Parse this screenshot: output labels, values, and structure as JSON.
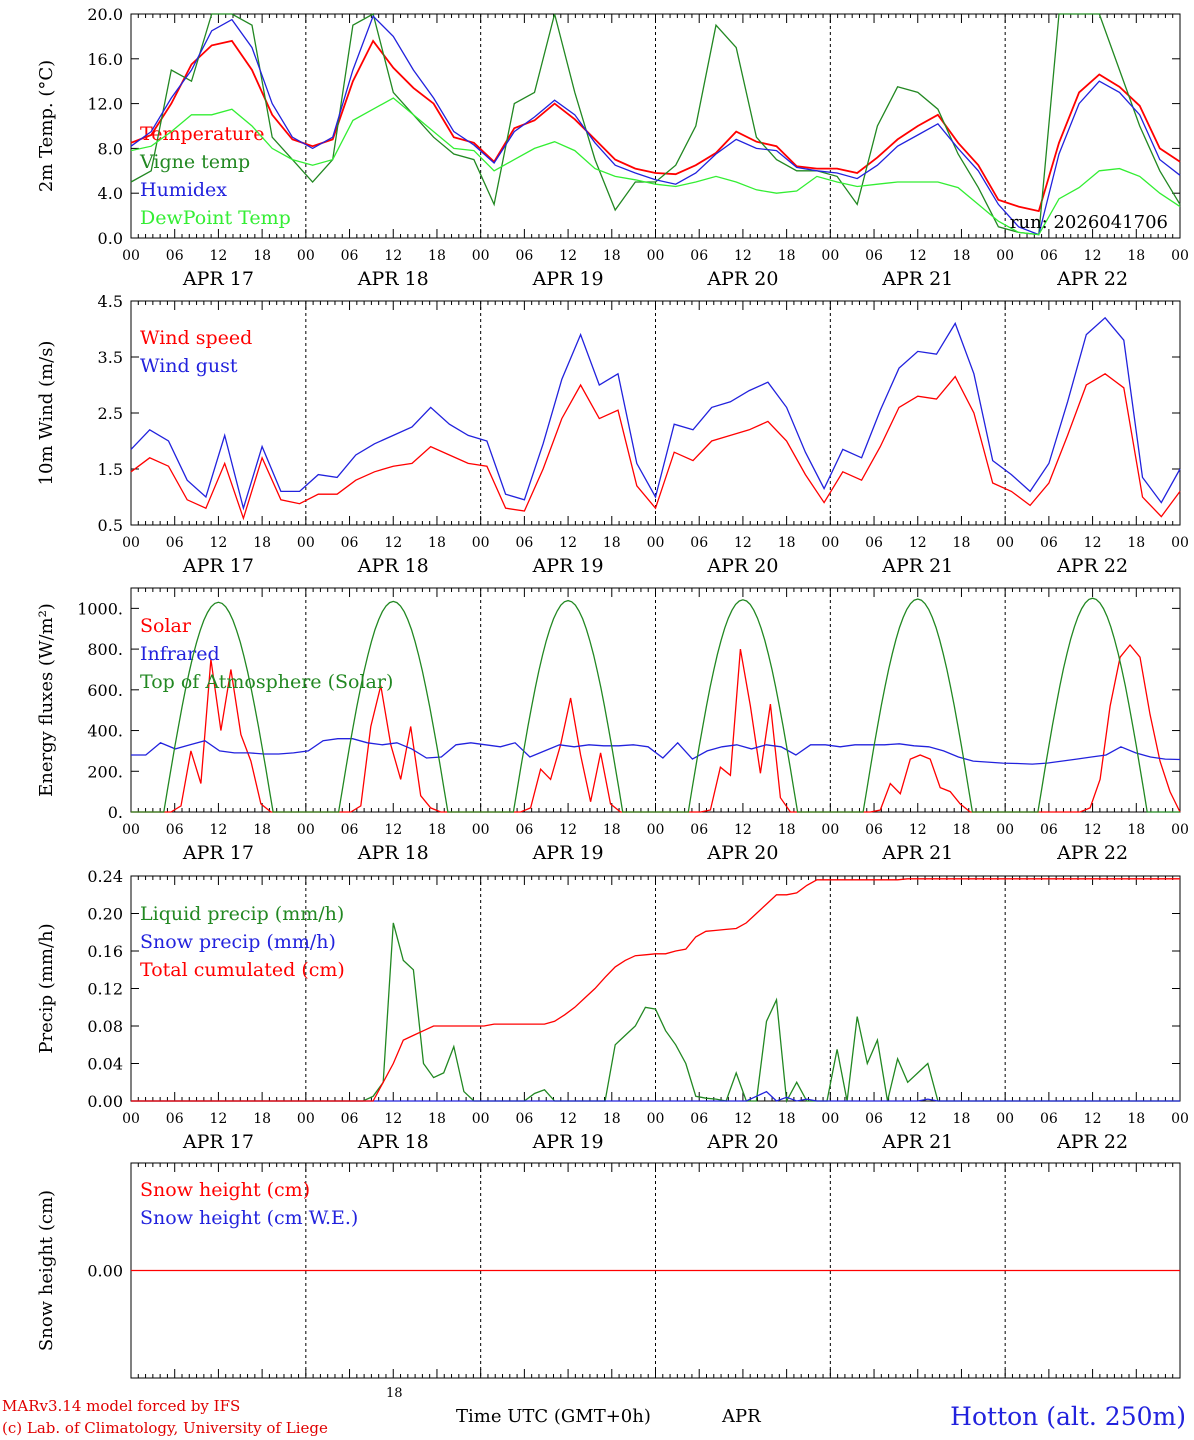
{
  "footer": {
    "model_credit": "MARv3.14 model forced by IFS",
    "lab_credit": "(c) Lab. of Climatology, University of Liege",
    "xaxis_title": "Time UTC (GMT+0h)",
    "xaxis_month": "APR",
    "bottom_hour": "18",
    "station": "Hotton (alt. 250m)"
  },
  "chart_data": [
    {
      "type": "line",
      "id": "temp",
      "ylabel": "2m Temp. (°C)",
      "ylim": [
        0,
        20
      ],
      "yticks": [
        0,
        4,
        8,
        12,
        16,
        20
      ],
      "ytick_labels": [
        "0.0",
        "4.0",
        "8.0",
        "12.0",
        "16.0",
        "20.0"
      ],
      "annotation": "run: 2026041706",
      "x_hours": "hours since APR 17 00 UTC, 3-hour steps from 0 to 144",
      "series": [
        {
          "name": "Temperature",
          "color": "#ff0000",
          "values": [
            8.5,
            9.2,
            12.0,
            15.5,
            17.2,
            17.6,
            15.0,
            11.0,
            8.8,
            8.2,
            8.8,
            14.0,
            17.6,
            15.2,
            13.4,
            12.0,
            9.0,
            8.5,
            6.8,
            9.8,
            10.5,
            12.0,
            10.6,
            8.8,
            7.0,
            6.2,
            5.8,
            5.7,
            6.5,
            7.6,
            9.5,
            8.6,
            8.2,
            6.4,
            6.2,
            6.2,
            5.8,
            7.2,
            8.8,
            10.0,
            11.0,
            8.5,
            6.5,
            3.4,
            2.8,
            2.4,
            8.5,
            13.0,
            14.6,
            13.5,
            11.8,
            8.0,
            6.8
          ]
        },
        {
          "name": "Vigne temp",
          "color": "#228822",
          "values": [
            5.0,
            6.0,
            15.0,
            14.0,
            20.0,
            20.0,
            19.0,
            9.0,
            7.0,
            5.0,
            7.0,
            19.0,
            20.0,
            13.0,
            11.0,
            9.0,
            7.5,
            7.0,
            3.0,
            12.0,
            13.0,
            20.0,
            13.0,
            7.0,
            2.5,
            5.0,
            5.0,
            6.5,
            10.0,
            19.0,
            17.0,
            9.0,
            7.0,
            6.0,
            6.0,
            5.5,
            3.0,
            10.0,
            13.5,
            13.0,
            11.5,
            7.5,
            4.5,
            1.0,
            0.5,
            0.3,
            20.0,
            20.0,
            20.0,
            15.0,
            10.0,
            6.0,
            3.0
          ]
        },
        {
          "name": "Humidex",
          "color": "#2222dd",
          "values": [
            8.2,
            9.5,
            12.5,
            15.0,
            18.5,
            19.5,
            17.0,
            12.0,
            9.0,
            8.0,
            9.0,
            15.0,
            19.8,
            18.0,
            15.0,
            12.5,
            9.5,
            8.3,
            6.7,
            9.5,
            10.8,
            12.3,
            11.0,
            8.5,
            6.5,
            5.8,
            5.2,
            4.8,
            5.8,
            7.5,
            8.8,
            8.0,
            7.8,
            6.3,
            6.0,
            5.8,
            5.3,
            6.5,
            8.2,
            9.2,
            10.2,
            8.0,
            6.0,
            3.0,
            1.0,
            0.3,
            7.5,
            12.0,
            14.0,
            13.0,
            11.0,
            7.0,
            5.6
          ]
        },
        {
          "name": "DewPoint Temp",
          "color": "#33ee33",
          "values": [
            7.8,
            8.2,
            9.5,
            11.0,
            11.0,
            11.5,
            10.0,
            8.0,
            7.0,
            6.5,
            7.0,
            10.5,
            11.5,
            12.5,
            11.0,
            9.5,
            8.0,
            7.8,
            6.0,
            7.0,
            8.0,
            8.6,
            7.8,
            6.2,
            5.5,
            5.2,
            4.8,
            4.6,
            5.0,
            5.5,
            5.0,
            4.3,
            4.0,
            4.2,
            5.5,
            5.0,
            4.6,
            4.8,
            5.0,
            5.0,
            5.0,
            4.5,
            3.0,
            1.5,
            0.5,
            0.3,
            3.5,
            4.5,
            6.0,
            6.2,
            5.5,
            4.0,
            2.8
          ]
        }
      ]
    },
    {
      "type": "line",
      "id": "wind",
      "ylabel": "10m Wind (m/s)",
      "ylim": [
        0.5,
        4.5
      ],
      "yticks": [
        0.5,
        1.5,
        2.5,
        3.5,
        4.5
      ],
      "ytick_labels": [
        "0.5",
        "1.5",
        "2.5",
        "3.5",
        "4.5"
      ],
      "series": [
        {
          "name": "Wind speed",
          "color": "#ff0000",
          "values": [
            1.45,
            1.7,
            1.55,
            0.95,
            0.8,
            1.6,
            0.62,
            1.7,
            0.95,
            0.88,
            1.05,
            1.05,
            1.3,
            1.45,
            1.55,
            1.6,
            1.9,
            1.75,
            1.6,
            1.55,
            0.8,
            0.75,
            1.5,
            2.4,
            3.0,
            2.4,
            2.55,
            1.2,
            0.8,
            1.8,
            1.65,
            2.0,
            2.1,
            2.2,
            2.35,
            2.0,
            1.4,
            0.9,
            1.45,
            1.3,
            1.9,
            2.6,
            2.8,
            2.75,
            3.15,
            2.5,
            1.25,
            1.1,
            0.85,
            1.25,
            2.1,
            3.0,
            3.2,
            2.95,
            1.0,
            0.65,
            1.1
          ]
        },
        {
          "name": "Wind gust",
          "color": "#2222dd",
          "values": [
            1.85,
            2.2,
            2.0,
            1.3,
            1.0,
            2.1,
            0.8,
            1.9,
            1.1,
            1.1,
            1.4,
            1.35,
            1.75,
            1.95,
            2.1,
            2.25,
            2.6,
            2.3,
            2.1,
            2.0,
            1.05,
            0.95,
            1.95,
            3.1,
            3.9,
            3.0,
            3.2,
            1.6,
            1.0,
            2.3,
            2.2,
            2.6,
            2.7,
            2.9,
            3.05,
            2.6,
            1.8,
            1.15,
            1.85,
            1.7,
            2.55,
            3.3,
            3.6,
            3.55,
            4.1,
            3.2,
            1.65,
            1.4,
            1.1,
            1.6,
            2.7,
            3.9,
            4.2,
            3.8,
            1.35,
            0.9,
            1.5
          ]
        }
      ]
    },
    {
      "type": "line",
      "id": "energy",
      "ylabel": "Energy fluxes (W/m²)",
      "ylim": [
        0,
        1100
      ],
      "yticks": [
        0,
        200,
        400,
        600,
        800,
        1000
      ],
      "ytick_labels": [
        "0.",
        "200.",
        "400.",
        "600.",
        "800.",
        "1000."
      ],
      "series": [
        {
          "name": "Solar",
          "color": "#ff0000",
          "values": [
            0,
            0,
            0,
            0,
            0,
            30,
            300,
            140,
            750,
            400,
            700,
            380,
            250,
            40,
            0,
            0,
            0,
            0,
            0,
            0,
            0,
            0,
            0,
            30,
            420,
            620,
            330,
            160,
            420,
            80,
            20,
            0,
            0,
            0,
            0,
            0,
            0,
            0,
            0,
            0,
            20,
            210,
            160,
            330,
            560,
            280,
            50,
            290,
            40,
            0,
            0,
            0,
            0,
            0,
            0,
            0,
            0,
            0,
            10,
            220,
            180,
            800,
            520,
            190,
            530,
            70,
            0,
            0,
            0,
            0,
            0,
            0,
            0,
            0,
            0,
            10,
            140,
            90,
            260,
            280,
            260,
            120,
            100,
            40,
            0,
            0,
            0,
            0,
            0,
            0,
            0,
            0,
            0,
            0,
            0,
            0,
            20,
            160,
            520,
            760,
            820,
            760,
            480,
            250,
            100,
            0
          ]
        },
        {
          "name": "Infrared",
          "color": "#2222dd",
          "values": [
            280,
            280,
            340,
            310,
            330,
            350,
            300,
            290,
            290,
            285,
            285,
            290,
            300,
            350,
            360,
            360,
            340,
            330,
            340,
            310,
            265,
            270,
            330,
            340,
            330,
            320,
            340,
            270,
            300,
            330,
            320,
            330,
            325,
            325,
            330,
            320,
            265,
            340,
            260,
            300,
            320,
            330,
            310,
            330,
            320,
            280,
            330,
            330,
            320,
            330,
            330,
            330,
            335,
            325,
            320,
            300,
            270,
            250,
            245,
            240,
            238,
            235,
            240,
            250,
            260,
            270,
            280,
            320,
            290,
            270,
            260,
            258
          ]
        },
        {
          "name": "Top of Atmosphere (Solar)",
          "color": "#228822",
          "values": []
        }
      ]
    },
    {
      "type": "line",
      "id": "precip",
      "ylabel": "Precip (mm/h)",
      "ylim": [
        0,
        0.24
      ],
      "yticks": [
        0,
        0.04,
        0.08,
        0.12,
        0.16,
        0.2,
        0.24
      ],
      "ytick_labels": [
        "0.00",
        "0.04",
        "0.08",
        "0.12",
        "0.16",
        "0.20",
        "0.24"
      ],
      "series": [
        {
          "name": "Liquid precip (mm/h)",
          "color": "#228822",
          "values": [
            0,
            0,
            0,
            0,
            0,
            0,
            0,
            0,
            0,
            0,
            0,
            0,
            0,
            0,
            0,
            0,
            0,
            0,
            0,
            0,
            0,
            0,
            0,
            0,
            0.005,
            0.02,
            0.19,
            0.15,
            0.14,
            0.04,
            0.025,
            0.03,
            0.058,
            0.01,
            0,
            0,
            0,
            0,
            0,
            0,
            0.008,
            0.012,
            0,
            0,
            0,
            0,
            0,
            0,
            0.06,
            0.07,
            0.08,
            0.1,
            0.098,
            0.075,
            0.06,
            0.04,
            0.005,
            0.003,
            0.002,
            0,
            0.03,
            0,
            0,
            0.085,
            0.108,
            0,
            0.02,
            0,
            0,
            0,
            0.055,
            0,
            0.09,
            0.04,
            0.065,
            0,
            0.045,
            0.02,
            0.03,
            0.04,
            0,
            0,
            0,
            0,
            0,
            0,
            0,
            0,
            0,
            0,
            0,
            0,
            0,
            0,
            0,
            0,
            0,
            0,
            0,
            0,
            0,
            0,
            0,
            0,
            0
          ]
        },
        {
          "name": "Snow precip (mm/h)",
          "color": "#2222dd",
          "values": [
            0,
            0,
            0,
            0,
            0,
            0,
            0,
            0,
            0,
            0,
            0,
            0,
            0,
            0,
            0,
            0,
            0,
            0,
            0,
            0,
            0,
            0,
            0,
            0,
            0,
            0,
            0,
            0,
            0,
            0,
            0,
            0,
            0,
            0,
            0,
            0,
            0,
            0,
            0,
            0,
            0,
            0,
            0,
            0,
            0,
            0,
            0,
            0,
            0,
            0,
            0,
            0,
            0,
            0,
            0,
            0,
            0,
            0,
            0,
            0,
            0,
            0,
            0.005,
            0.01,
            0,
            0.004,
            0,
            0.002,
            0,
            0,
            0,
            0,
            0,
            0,
            0,
            0,
            0,
            0,
            0,
            0.002,
            0,
            0,
            0,
            0,
            0,
            0,
            0,
            0,
            0,
            0,
            0,
            0,
            0,
            0,
            0,
            0,
            0,
            0,
            0,
            0,
            0,
            0,
            0,
            0,
            0
          ]
        },
        {
          "name": "Total cumulated (cm)",
          "color": "#ff0000",
          "values": [
            0,
            0,
            0,
            0,
            0,
            0,
            0,
            0,
            0,
            0,
            0,
            0,
            0,
            0,
            0,
            0,
            0,
            0,
            0,
            0,
            0,
            0,
            0,
            0,
            0,
            0.02,
            0.04,
            0.065,
            0.07,
            0.075,
            0.08,
            0.08,
            0.08,
            0.08,
            0.08,
            0.08,
            0.082,
            0.082,
            0.082,
            0.082,
            0.082,
            0.082,
            0.085,
            0.092,
            0.1,
            0.11,
            0.12,
            0.132,
            0.143,
            0.15,
            0.155,
            0.156,
            0.157,
            0.157,
            0.16,
            0.162,
            0.175,
            0.181,
            0.182,
            0.183,
            0.184,
            0.19,
            0.2,
            0.21,
            0.22,
            0.22,
            0.222,
            0.23,
            0.236,
            0.236,
            0.236,
            0.236,
            0.236,
            0.236,
            0.236,
            0.236,
            0.236,
            0.237,
            0.237,
            0.237,
            0.237,
            0.237,
            0.237,
            0.237,
            0.237,
            0.237,
            0.237,
            0.237,
            0.237,
            0.237,
            0.237,
            0.237,
            0.237,
            0.237,
            0.237,
            0.237,
            0.237,
            0.237,
            0.237,
            0.237,
            0.237,
            0.237,
            0.237,
            0.237,
            0.237
          ]
        }
      ]
    },
    {
      "type": "line",
      "id": "snow",
      "ylabel": "Snow height (cm)",
      "ylim": [
        -1,
        1
      ],
      "yticks": [
        0
      ],
      "ytick_labels": [
        "0.00"
      ],
      "series": [
        {
          "name": "Snow height (cm)",
          "color": "#ff0000",
          "values": [
            0,
            0
          ]
        },
        {
          "name": "Snow height (cm W.E.)",
          "color": "#2222dd",
          "values": []
        }
      ]
    }
  ],
  "x_axis": {
    "hour_labels": [
      "00",
      "06",
      "12",
      "18",
      "00",
      "06",
      "12",
      "18",
      "00",
      "06",
      "12",
      "18",
      "00",
      "06",
      "12",
      "18",
      "00",
      "06",
      "12",
      "18",
      "00",
      "06",
      "12",
      "18",
      "00"
    ],
    "day_labels": [
      "APR 17",
      "APR 18",
      "APR 19",
      "APR 20",
      "APR 21",
      "APR 22"
    ]
  }
}
